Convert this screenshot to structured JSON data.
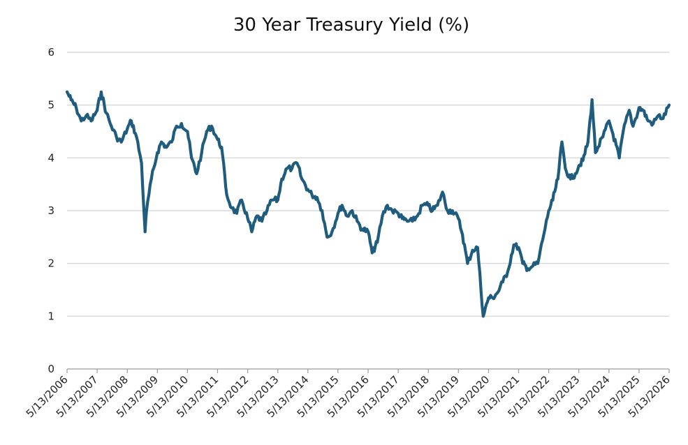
{
  "chart_data": {
    "type": "line",
    "title": "30 Year Treasury Yield (%)",
    "xlabel": "",
    "ylabel": "",
    "ylim": [
      0,
      6
    ],
    "y_ticks": [
      "0",
      "1",
      "2",
      "3",
      "4",
      "5",
      "6"
    ],
    "x_ticks": [
      "5/13/2006",
      "5/13/2007",
      "5/13/2008",
      "5/13/2009",
      "5/13/2010",
      "5/13/2011",
      "5/13/2012",
      "5/13/2013",
      "5/13/2014",
      "5/13/2015",
      "5/13/2016",
      "5/13/2017",
      "5/13/2018",
      "5/13/2019",
      "5/13/2020",
      "5/13/2021",
      "5/13/2022",
      "5/13/2023",
      "5/13/2024",
      "5/13/2025",
      "5/13/2026"
    ],
    "grid": true,
    "legend": "none",
    "colors": {
      "line": "#1f5c7e",
      "grid": "#d0d0d0",
      "axis": "#9a9a9a"
    },
    "series": [
      {
        "x": [
          "2006-05-13",
          "2006-07-01",
          "2006-09-01",
          "2006-11-01",
          "2007-01-01",
          "2007-03-01",
          "2007-05-13",
          "2007-07-01",
          "2007-09-01",
          "2007-11-01",
          "2008-01-01",
          "2008-03-01",
          "2008-05-13",
          "2008-07-01",
          "2008-09-01",
          "2008-11-01",
          "2008-12-15",
          "2009-01-01",
          "2009-03-01",
          "2009-05-13",
          "2009-07-01",
          "2009-09-01",
          "2009-11-01",
          "2010-01-01",
          "2010-03-01",
          "2010-05-13",
          "2010-07-01",
          "2010-09-01",
          "2010-11-01",
          "2011-01-01",
          "2011-03-01",
          "2011-05-13",
          "2011-07-01",
          "2011-09-01",
          "2011-11-01",
          "2012-01-01",
          "2012-03-01",
          "2012-05-13",
          "2012-07-01",
          "2012-09-01",
          "2012-11-01",
          "2013-01-01",
          "2013-03-01",
          "2013-05-13",
          "2013-07-01",
          "2013-09-01",
          "2013-11-01",
          "2014-01-01",
          "2014-03-01",
          "2014-05-13",
          "2014-07-01",
          "2014-09-01",
          "2014-11-01",
          "2015-01-01",
          "2015-03-01",
          "2015-05-13",
          "2015-07-01",
          "2015-09-01",
          "2015-11-01",
          "2016-01-01",
          "2016-03-01",
          "2016-05-13",
          "2016-07-01",
          "2016-09-01",
          "2016-11-01",
          "2017-01-01",
          "2017-03-01",
          "2017-05-13",
          "2017-07-01",
          "2017-09-01",
          "2017-11-01",
          "2018-01-01",
          "2018-03-01",
          "2018-05-13",
          "2018-07-01",
          "2018-09-01",
          "2018-11-01",
          "2019-01-01",
          "2019-03-01",
          "2019-05-13",
          "2019-07-01",
          "2019-09-01",
          "2019-11-01",
          "2020-01-01",
          "2020-03-09",
          "2020-05-13",
          "2020-07-01",
          "2020-09-01",
          "2020-11-01",
          "2021-01-01",
          "2021-03-15",
          "2021-05-13",
          "2021-07-01",
          "2021-09-01",
          "2021-11-01",
          "2022-01-01",
          "2022-03-01",
          "2022-05-13",
          "2022-07-01",
          "2022-09-01",
          "2022-10-20",
          "2022-12-01",
          "2023-02-01",
          "2023-04-01",
          "2023-05-13",
          "2023-07-01",
          "2023-09-01",
          "2023-10-20",
          "2023-12-01",
          "2024-01-01",
          "2024-03-01",
          "2024-05-13",
          "2024-07-01",
          "2024-09-15",
          "2024-11-01",
          "2025-01-13",
          "2025-03-01",
          "2025-05-13",
          "2025-07-01",
          "2025-09-01",
          "2025-11-01",
          "2026-01-01",
          "2026-03-01",
          "2026-05-13"
        ],
        "values": [
          5.25,
          5.1,
          4.95,
          4.7,
          4.8,
          4.7,
          4.9,
          5.25,
          4.85,
          4.6,
          4.4,
          4.3,
          4.55,
          4.7,
          4.4,
          3.9,
          2.6,
          3.0,
          3.6,
          4.1,
          4.3,
          4.2,
          4.3,
          4.6,
          4.65,
          4.5,
          4.0,
          3.7,
          4.1,
          4.5,
          4.6,
          4.35,
          4.2,
          3.3,
          3.05,
          2.95,
          3.2,
          2.85,
          2.6,
          2.9,
          2.8,
          3.0,
          3.2,
          3.2,
          3.6,
          3.8,
          3.8,
          3.9,
          3.6,
          3.4,
          3.3,
          3.25,
          3.0,
          2.5,
          2.6,
          2.95,
          3.1,
          2.9,
          3.0,
          2.8,
          2.65,
          2.6,
          2.2,
          2.4,
          2.9,
          3.1,
          3.0,
          2.95,
          2.85,
          2.8,
          2.8,
          2.9,
          3.1,
          3.1,
          3.0,
          3.1,
          3.35,
          3.0,
          3.0,
          2.85,
          2.55,
          2.0,
          2.25,
          2.3,
          1.0,
          1.35,
          1.35,
          1.45,
          1.65,
          1.85,
          2.35,
          2.3,
          2.0,
          1.9,
          1.95,
          2.0,
          2.45,
          3.0,
          3.2,
          3.6,
          4.3,
          3.8,
          3.6,
          3.7,
          3.85,
          3.95,
          4.3,
          5.1,
          4.1,
          4.2,
          4.4,
          4.7,
          4.45,
          4.0,
          4.5,
          4.9,
          4.6,
          4.95,
          4.9,
          4.7,
          4.65,
          4.8,
          4.75,
          5.0
        ]
      }
    ]
  }
}
